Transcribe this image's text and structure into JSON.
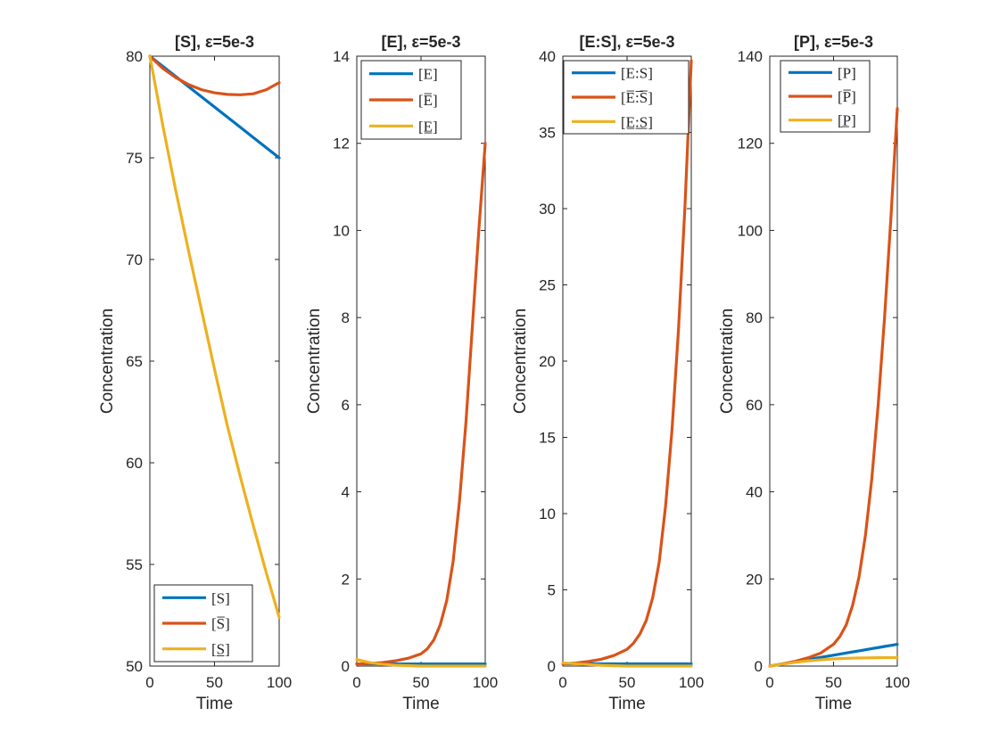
{
  "figure": {
    "colors": {
      "blue": "#0072BD",
      "orange": "#D95319",
      "yellow": "#EDB120",
      "axis": "#262626"
    }
  },
  "chart_data": [
    {
      "type": "line",
      "title": "[S], ε=5e-3",
      "xlabel": "Time",
      "ylabel": "Concentration",
      "xlim": [
        0,
        100
      ],
      "ylim": [
        50,
        80
      ],
      "xticks": [
        0,
        50,
        100
      ],
      "yticks": [
        50,
        55,
        60,
        65,
        70,
        75,
        80
      ],
      "grid": false,
      "legend_position": "bottom-left",
      "x": [
        0,
        10,
        20,
        30,
        40,
        50,
        60,
        70,
        80,
        90,
        100
      ],
      "series": [
        {
          "name": "[S]",
          "color": "#0072BD",
          "values": [
            80,
            79.5,
            79.0,
            78.5,
            78.0,
            77.5,
            77.0,
            76.5,
            76.0,
            75.5,
            75.0
          ]
        },
        {
          "name": "[S̅]",
          "color": "#D95319",
          "values": [
            80,
            79.4,
            78.95,
            78.6,
            78.35,
            78.2,
            78.12,
            78.1,
            78.15,
            78.35,
            78.7
          ]
        },
        {
          "name": "[S̲]",
          "color": "#EDB120",
          "values": [
            80,
            76.6,
            73.4,
            70.4,
            67.5,
            64.6,
            61.8,
            59.3,
            56.9,
            54.6,
            52.4
          ]
        }
      ]
    },
    {
      "type": "line",
      "title": "[E], ε=5e-3",
      "xlabel": "Time",
      "ylabel": "Concentration",
      "xlim": [
        0,
        100
      ],
      "ylim": [
        0,
        14
      ],
      "xticks": [
        0,
        50,
        100
      ],
      "yticks": [
        0,
        2,
        4,
        6,
        8,
        10,
        12,
        14
      ],
      "grid": false,
      "legend_position": "top-left",
      "x": [
        0,
        10,
        20,
        30,
        40,
        50,
        55,
        60,
        65,
        70,
        75,
        80,
        85,
        90,
        95,
        100
      ],
      "series": [
        {
          "name": "[E]",
          "color": "#0072BD",
          "values": [
            0.05,
            0.05,
            0.05,
            0.05,
            0.05,
            0.05,
            0.05,
            0.05,
            0.05,
            0.05,
            0.05,
            0.05,
            0.05,
            0.05,
            0.05,
            0.05
          ]
        },
        {
          "name": "[E̅]",
          "color": "#D95319",
          "values": [
            0.05,
            0.06,
            0.08,
            0.12,
            0.18,
            0.28,
            0.4,
            0.6,
            0.95,
            1.5,
            2.4,
            3.8,
            5.6,
            7.8,
            10.0,
            12.0
          ]
        },
        {
          "name": "[E̲]",
          "color": "#EDB120",
          "values": [
            0.15,
            0.08,
            0.04,
            0.02,
            0.01,
            0,
            0,
            0,
            0,
            0,
            0,
            0,
            0,
            0,
            0,
            0
          ]
        }
      ]
    },
    {
      "type": "line",
      "title": "[E:S], ε=5e-3",
      "xlabel": "Time",
      "ylabel": "Concentration",
      "xlim": [
        0,
        100
      ],
      "ylim": [
        0,
        40
      ],
      "xticks": [
        0,
        50,
        100
      ],
      "yticks": [
        0,
        5,
        10,
        15,
        20,
        25,
        30,
        35,
        40
      ],
      "grid": false,
      "legend_position": "top-left",
      "x": [
        0,
        10,
        20,
        30,
        40,
        50,
        55,
        60,
        65,
        70,
        75,
        80,
        85,
        90,
        95,
        100
      ],
      "series": [
        {
          "name": "[E:S]",
          "color": "#0072BD",
          "values": [
            0.15,
            0.15,
            0.15,
            0.15,
            0.15,
            0.15,
            0.15,
            0.15,
            0.15,
            0.15,
            0.15,
            0.15,
            0.15,
            0.15,
            0.15,
            0.15
          ]
        },
        {
          "name": "[E̅:̅S̅]",
          "color": "#D95319",
          "values": [
            0.15,
            0.2,
            0.3,
            0.45,
            0.7,
            1.1,
            1.5,
            2.1,
            3.0,
            4.5,
            6.8,
            10.5,
            15.5,
            22.0,
            30.0,
            39.7
          ]
        },
        {
          "name": "[E̲:̲S̲]",
          "color": "#EDB120",
          "values": [
            0.2,
            0.15,
            0.1,
            0.05,
            0.02,
            0,
            0,
            0,
            0,
            0,
            0,
            0,
            0,
            0,
            0,
            0
          ]
        }
      ]
    },
    {
      "type": "line",
      "title": "[P], ε=5e-3",
      "xlabel": "Time",
      "ylabel": "Concentration",
      "xlim": [
        0,
        100
      ],
      "ylim": [
        0,
        140
      ],
      "xticks": [
        0,
        50,
        100
      ],
      "yticks": [
        0,
        20,
        40,
        60,
        80,
        100,
        120,
        140
      ],
      "grid": false,
      "legend_position": "top-left",
      "x": [
        0,
        10,
        20,
        30,
        40,
        50,
        55,
        60,
        65,
        70,
        75,
        80,
        85,
        90,
        95,
        100
      ],
      "series": [
        {
          "name": "[P]",
          "color": "#0072BD",
          "values": [
            0,
            0.5,
            1.0,
            1.5,
            2.0,
            2.5,
            2.75,
            3.0,
            3.25,
            3.5,
            3.75,
            4.0,
            4.25,
            4.5,
            4.75,
            5.0
          ]
        },
        {
          "name": "[P̅]",
          "color": "#D95319",
          "values": [
            0,
            0.5,
            1.1,
            1.9,
            3.0,
            5.0,
            6.8,
            9.5,
            14.0,
            20.5,
            30.0,
            43.0,
            60.0,
            80.0,
            103.0,
            128.0
          ]
        },
        {
          "name": "[P̲]",
          "color": "#EDB120",
          "values": [
            0,
            0.45,
            0.85,
            1.2,
            1.45,
            1.65,
            1.72,
            1.78,
            1.82,
            1.86,
            1.88,
            1.9,
            1.92,
            1.93,
            1.94,
            1.95
          ]
        }
      ]
    }
  ]
}
